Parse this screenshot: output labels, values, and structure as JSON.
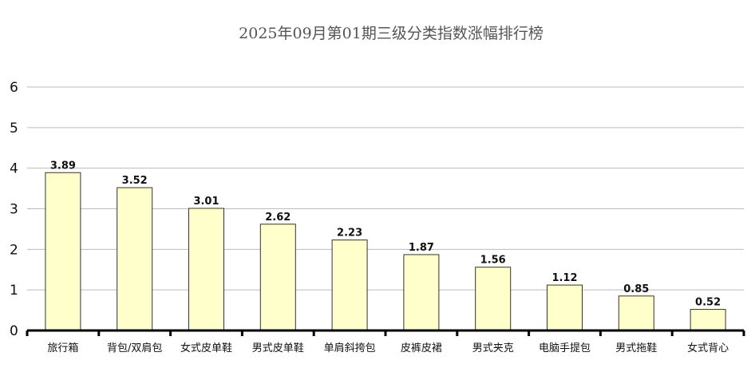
{
  "chart_data": {
    "type": "bar",
    "title": "2025年09月第01期三级分类指数涨幅排行榜",
    "categories": [
      "旅行箱",
      "背包/双肩包",
      "女式皮单鞋",
      "男式皮单鞋",
      "单肩斜挎包",
      "皮裤皮裙",
      "男式夹克",
      "电脑手提包",
      "男式拖鞋",
      "女式背心"
    ],
    "values": [
      3.89,
      3.52,
      3.01,
      2.62,
      2.23,
      1.87,
      1.56,
      1.12,
      0.85,
      0.52
    ],
    "value_labels": [
      "3.89",
      "3.52",
      "3.01",
      "2.62",
      "2.23",
      "1.87",
      "1.56",
      "1.12",
      "0.85",
      "0.52"
    ],
    "xlabel": "",
    "ylabel": "",
    "ylim": [
      0,
      6
    ],
    "yticks": [
      "0",
      "1",
      "2",
      "3",
      "4",
      "5",
      "6"
    ],
    "grid": true,
    "legend": "none",
    "colors": {
      "bar_fill": "#ffffcc",
      "bar_stroke": "#333333",
      "grid": "#bbbbbb"
    }
  }
}
